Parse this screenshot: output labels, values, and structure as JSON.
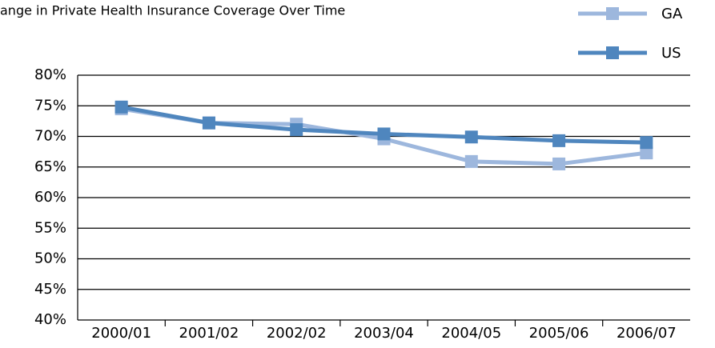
{
  "chart_data": {
    "type": "line",
    "title": "ange in Private Health Insurance Coverage Over Time",
    "categories": [
      "2000/01",
      "2001/02",
      "2002/02",
      "2003/04",
      "2004/05",
      "2005/06",
      "2006/07"
    ],
    "series": [
      {
        "name": "GA",
        "color": "#9db7dd",
        "values": [
          74.5,
          72.2,
          72.0,
          69.6,
          65.9,
          65.5,
          67.3
        ]
      },
      {
        "name": "US",
        "color": "#4f86be",
        "values": [
          74.8,
          72.2,
          71.1,
          70.4,
          69.9,
          69.3,
          69.0
        ]
      }
    ],
    "ylim": [
      40,
      80
    ],
    "yticks": [
      {
        "value": 40,
        "label": "40%"
      },
      {
        "value": 45,
        "label": "45%"
      },
      {
        "value": 50,
        "label": "50%"
      },
      {
        "value": 55,
        "label": "55%"
      },
      {
        "value": 60,
        "label": "60%"
      },
      {
        "value": 65,
        "label": "65%"
      },
      {
        "value": 70,
        "label": "70%"
      },
      {
        "value": 75,
        "label": "75%"
      },
      {
        "value": 80,
        "label": "80%"
      }
    ],
    "grid": true
  }
}
